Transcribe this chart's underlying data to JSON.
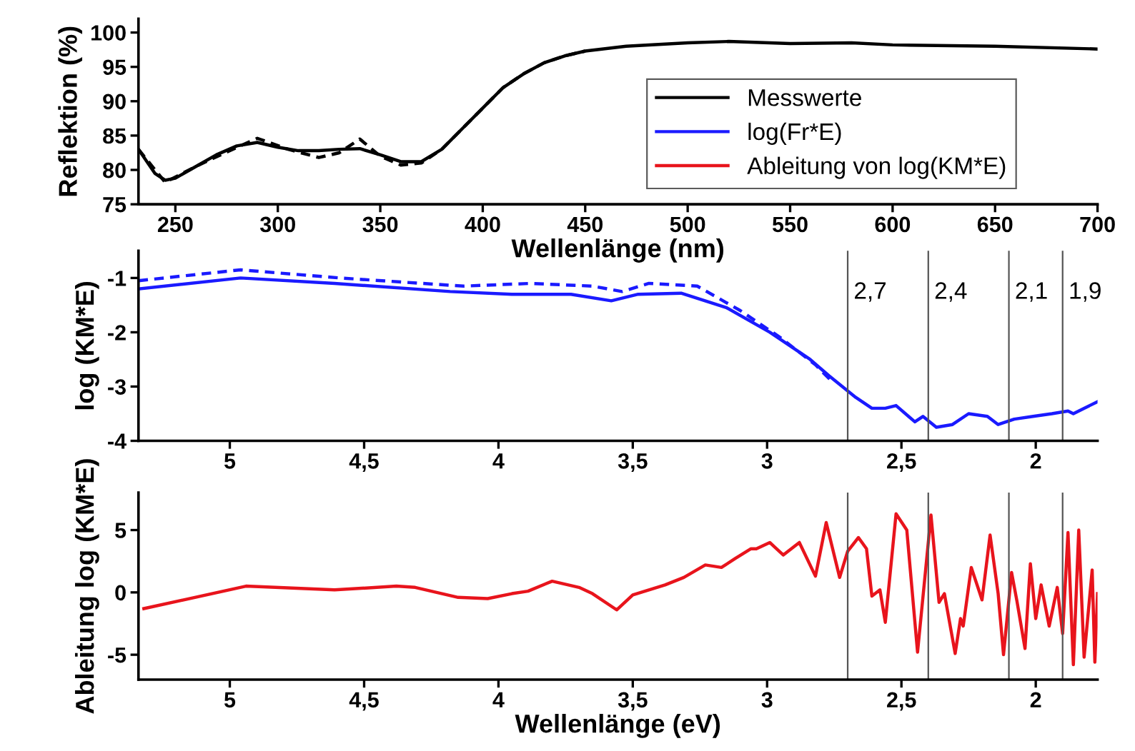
{
  "chart_data": [
    {
      "type": "line",
      "xlabel": "Wellenlänge (nm)",
      "ylabel": "Reflektion (%)",
      "xlim": [
        232,
        700
      ],
      "ylim": [
        75,
        102
      ],
      "xticks": [
        250,
        300,
        350,
        400,
        450,
        500,
        550,
        600,
        650,
        700
      ],
      "yticks": [
        75,
        80,
        85,
        90,
        95,
        100
      ],
      "legend": "right",
      "grid": false,
      "series": [
        {
          "name": "Messwerte",
          "color": "#000000",
          "line_style": "solid",
          "x": [
            232,
            240,
            245,
            250,
            260,
            270,
            280,
            290,
            300,
            310,
            320,
            330,
            340,
            350,
            360,
            370,
            380,
            390,
            400,
            410,
            420,
            430,
            440,
            450,
            470,
            500,
            520,
            550,
            580,
            600,
            650,
            700
          ],
          "values": [
            83,
            79.5,
            78.5,
            78.8,
            80.5,
            82.2,
            83.5,
            84,
            83.3,
            82.8,
            82.8,
            83,
            83.1,
            82.2,
            81.2,
            81.2,
            83,
            86,
            89,
            92,
            94,
            95.6,
            96.6,
            97.3,
            98,
            98.5,
            98.7,
            98.4,
            98.5,
            98.2,
            98,
            97.6
          ]
        },
        {
          "color": "#000000",
          "line_style": "dashed",
          "x": [
            232,
            245,
            260,
            275,
            290,
            305,
            320,
            330,
            340,
            350,
            360,
            370,
            380,
            390,
            400,
            410,
            420,
            430,
            440,
            450
          ],
          "values": [
            83,
            78.2,
            80.5,
            82.6,
            84.6,
            83,
            81.8,
            82.5,
            84.5,
            82,
            80.7,
            81,
            83,
            86,
            89,
            92,
            94,
            95.6,
            96.6,
            97.3
          ]
        }
      ]
    },
    {
      "type": "line",
      "ylabel": "log (KM*E)",
      "xlim": [
        5.34,
        1.77
      ],
      "ylim": [
        -4,
        -0.5
      ],
      "xticks": [
        {
          "value": 5,
          "label": "5"
        },
        {
          "value": 4.5,
          "label": "4,5"
        },
        {
          "value": 4,
          "label": "4"
        },
        {
          "value": 3.5,
          "label": "3,5"
        },
        {
          "value": 3,
          "label": "3"
        },
        {
          "value": 2.5,
          "label": "2,5"
        },
        {
          "value": 2,
          "label": "2"
        }
      ],
      "yticks": [
        -4,
        -3,
        -2,
        -1
      ],
      "grid": false,
      "ref_lines": [
        {
          "axis": "x",
          "value": 2.7,
          "label": "2,7",
          "color": "#555555"
        },
        {
          "axis": "x",
          "value": 2.4,
          "label": "2,4",
          "color": "#555555"
        },
        {
          "axis": "x",
          "value": 2.1,
          "label": "2,1",
          "color": "#555555"
        },
        {
          "axis": "x",
          "value": 1.9,
          "label": "1,9",
          "color": "#555555"
        }
      ],
      "series": [
        {
          "name": "log(Fr*E)",
          "color": "#1a1aff",
          "line_style": "solid",
          "x": [
            5.34,
            4.96,
            4.61,
            4.18,
            3.95,
            3.73,
            3.58,
            3.48,
            3.32,
            3.15,
            2.99,
            2.84,
            2.77,
            2.67,
            2.61,
            2.56,
            2.52,
            2.45,
            2.42,
            2.37,
            2.31,
            2.25,
            2.18,
            2.14,
            2.08,
            2.01,
            1.94,
            1.88,
            1.86,
            1.82,
            1.77
          ],
          "values": [
            -1.2,
            -1.0,
            -1.1,
            -1.25,
            -1.3,
            -1.3,
            -1.42,
            -1.3,
            -1.28,
            -1.55,
            -2.0,
            -2.5,
            -2.8,
            -3.2,
            -3.4,
            -3.4,
            -3.35,
            -3.65,
            -3.55,
            -3.75,
            -3.7,
            -3.5,
            -3.55,
            -3.7,
            -3.6,
            -3.55,
            -3.5,
            -3.45,
            -3.5,
            -3.4,
            -3.28
          ]
        },
        {
          "color": "#1a1aff",
          "line_style": "dashed",
          "x": [
            5.34,
            4.96,
            4.59,
            4.13,
            3.88,
            3.65,
            3.54,
            3.44,
            3.26,
            3.1,
            2.95,
            2.82,
            2.76
          ],
          "values": [
            -1.05,
            -0.85,
            -1.0,
            -1.15,
            -1.1,
            -1.15,
            -1.25,
            -1.1,
            -1.15,
            -1.6,
            -2.1,
            -2.6,
            -2.9
          ]
        }
      ]
    },
    {
      "type": "line",
      "xlabel": "Wellenlänge (eV)",
      "ylabel": "Ableitung log (KM*E)",
      "xlim": [
        5.34,
        1.77
      ],
      "ylim": [
        -7,
        8
      ],
      "xticks": [
        {
          "value": 5,
          "label": "5"
        },
        {
          "value": 4.5,
          "label": "4,5"
        },
        {
          "value": 4,
          "label": "4"
        },
        {
          "value": 3.5,
          "label": "3,5"
        },
        {
          "value": 3,
          "label": "3"
        },
        {
          "value": 2.5,
          "label": "2,5"
        },
        {
          "value": 2,
          "label": "2"
        }
      ],
      "yticks": [
        -5,
        0,
        5
      ],
      "grid": false,
      "ref_lines": [
        {
          "axis": "x",
          "value": 2.7,
          "color": "#555555"
        },
        {
          "axis": "x",
          "value": 2.4,
          "color": "#555555"
        },
        {
          "axis": "x",
          "value": 2.1,
          "color": "#555555"
        },
        {
          "axis": "x",
          "value": 1.9,
          "color": "#555555"
        }
      ],
      "series": [
        {
          "name": "Ableitung von log(KM*E)",
          "color": "#e8141c",
          "line_style": "solid",
          "x": [
            5.32,
            4.94,
            4.61,
            4.38,
            4.31,
            4.15,
            4.04,
            3.95,
            3.89,
            3.8,
            3.7,
            3.65,
            3.56,
            3.5,
            3.38,
            3.31,
            3.23,
            3.17,
            3.12,
            3.06,
            3.04,
            2.99,
            2.94,
            2.88,
            2.82,
            2.78,
            2.73,
            2.7,
            2.66,
            2.63,
            2.61,
            2.58,
            2.56,
            2.52,
            2.48,
            2.44,
            2.39,
            2.36,
            2.34,
            2.3,
            2.28,
            2.27,
            2.24,
            2.2,
            2.17,
            2.14,
            2.12,
            2.09,
            2.07,
            2.04,
            2.02,
            2.0,
            1.98,
            1.95,
            1.92,
            1.9,
            1.88,
            1.86,
            1.84,
            1.82,
            1.79,
            1.78,
            1.77
          ],
          "values": [
            -1.3,
            0.5,
            0.2,
            0.5,
            0.4,
            -0.4,
            -0.5,
            -0.1,
            0.1,
            0.9,
            0.4,
            -0.1,
            -1.4,
            -0.2,
            0.6,
            1.2,
            2.2,
            2.0,
            2.7,
            3.5,
            3.5,
            4.0,
            3.0,
            4.0,
            1.3,
            5.6,
            1.2,
            3.3,
            4.4,
            3.5,
            -0.3,
            0.2,
            -2.4,
            6.3,
            5.0,
            -4.8,
            6.2,
            -0.8,
            -0.1,
            -4.9,
            -2.1,
            -2.7,
            2.0,
            -0.6,
            4.6,
            -0.1,
            -5.0,
            1.6,
            -0.7,
            -4.5,
            2.3,
            -2.1,
            0.6,
            -2.7,
            0.4,
            -3.3,
            4.8,
            -5.8,
            5.0,
            -5.2,
            1.8,
            -5.6,
            -0.1
          ]
        }
      ]
    }
  ]
}
